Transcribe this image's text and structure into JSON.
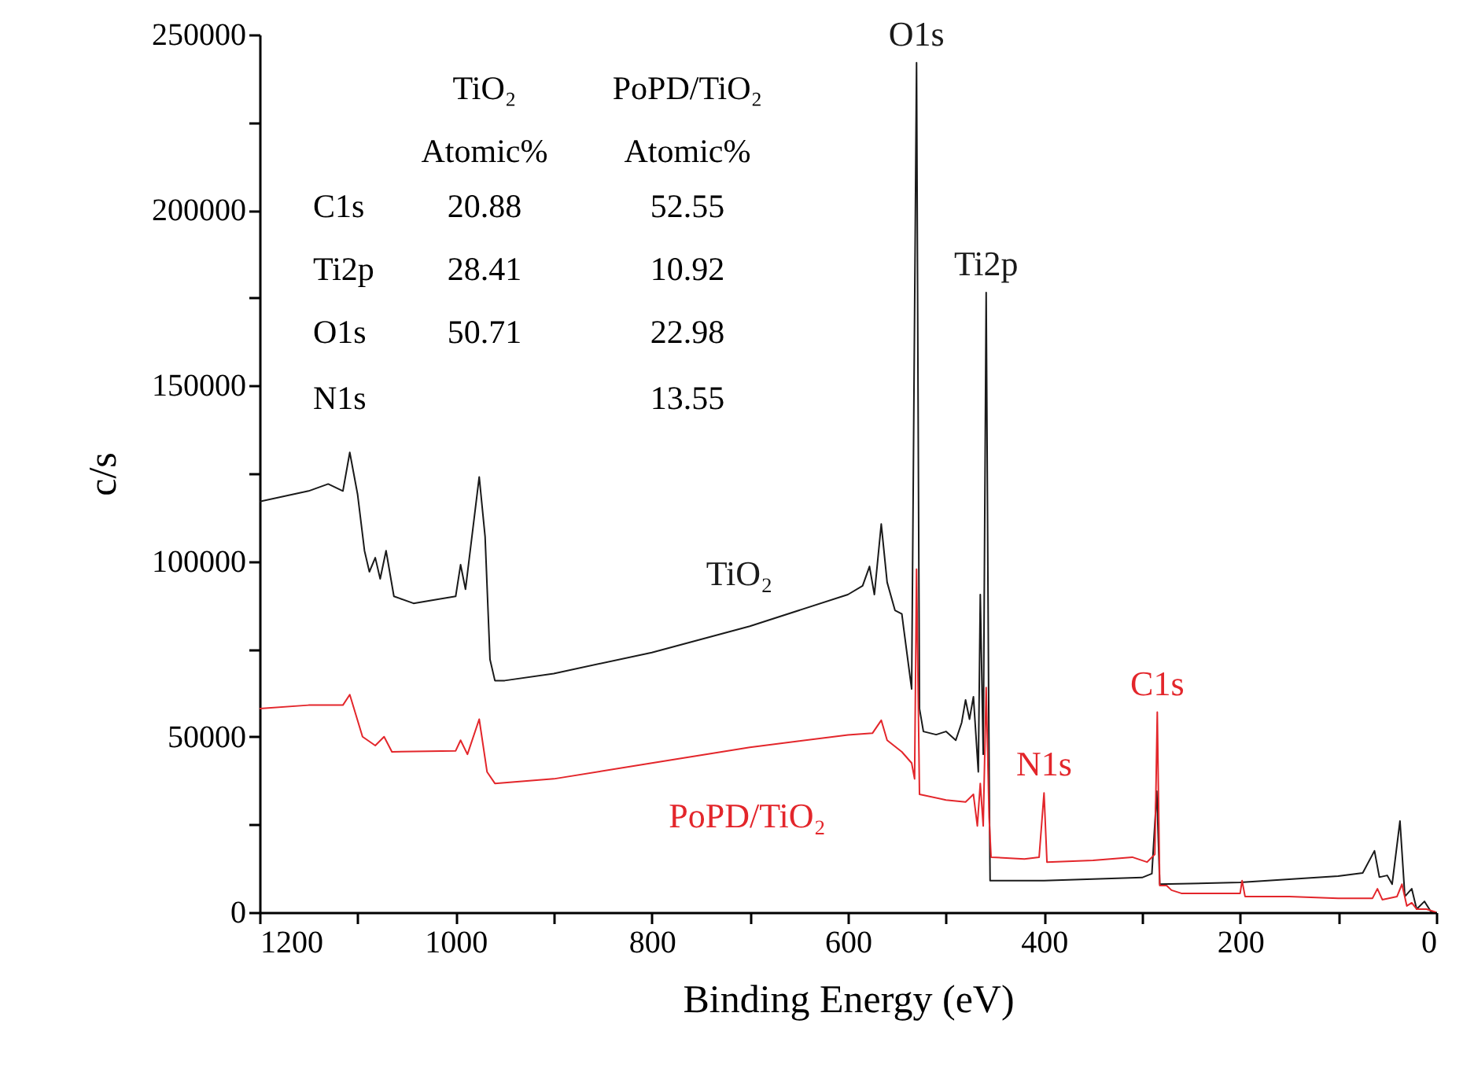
{
  "chart_data": {
    "type": "line",
    "xlabel": "Binding Energy (eV)",
    "ylabel": "c/s",
    "xlim": [
      1200,
      0
    ],
    "xticks": [
      1200,
      {
        "value": 1100,
        "label": null
      },
      1000,
      {
        "value": 900,
        "label": null
      },
      800,
      {
        "value": 700,
        "label": null
      },
      600,
      {
        "value": 500,
        "label": null
      },
      400,
      {
        "value": 300,
        "label": null
      },
      200,
      {
        "value": 100,
        "label": null
      },
      0
    ],
    "ylim": [
      0,
      250000
    ],
    "yticks": [
      0,
      {
        "value": 25000,
        "label": null
      },
      50000,
      {
        "value": 75000,
        "label": null
      },
      100000,
      {
        "value": 125000,
        "label": null
      },
      150000,
      {
        "value": 175000,
        "label": null
      },
      200000,
      {
        "value": 225000,
        "label": null
      },
      250000
    ],
    "grid": false,
    "legend": false,
    "series": [
      {
        "name": "TiO₂",
        "color": "#1a1a1a",
        "x": [
          1200,
          1150,
          1130,
          1115,
          1108,
          1100,
          1093,
          1088,
          1082,
          1077,
          1071,
          1063,
          1043,
          1000,
          995,
          990,
          976,
          970,
          965,
          960,
          950,
          900,
          800,
          700,
          600,
          585,
          578,
          573,
          566,
          560,
          552,
          545,
          543,
          535,
          530,
          527,
          523,
          510,
          500,
          490,
          484,
          480,
          476,
          472,
          467,
          465,
          462,
          459,
          456,
          455,
          400,
          300,
          290,
          285,
          282,
          200,
          100,
          75,
          63,
          58,
          50,
          45,
          37,
          32,
          25,
          20,
          12,
          5,
          0
        ],
        "values": [
          117000,
          120000,
          122000,
          120000,
          131000,
          119000,
          103000,
          97000,
          101000,
          95000,
          103000,
          90000,
          88000,
          90000,
          99000,
          92000,
          124000,
          107000,
          72000,
          66000,
          66000,
          68000,
          74000,
          81500,
          90500,
          93000,
          98500,
          90500,
          110600,
          94000,
          86000,
          85000,
          80600,
          63600,
          242000,
          58000,
          51500,
          50600,
          51500,
          49000,
          54000,
          60500,
          55000,
          61400,
          40000,
          90500,
          45000,
          176500,
          40000,
          9000,
          9000,
          9900,
          11000,
          34500,
          8000,
          8500,
          10300,
          11200,
          17500,
          10000,
          10500,
          8000,
          26000,
          4500,
          6700,
          900,
          3100,
          0,
          0
        ]
      },
      {
        "name": "PoPD/TiO₂",
        "color": "#e3262b",
        "x": [
          1200,
          1150,
          1115,
          1108,
          1095,
          1082,
          1073,
          1065,
          1000,
          995,
          988,
          976,
          968,
          960,
          900,
          800,
          700,
          600,
          575,
          566,
          560,
          545,
          535,
          532,
          530,
          527,
          500,
          480,
          472,
          468,
          465,
          462,
          459,
          456,
          454,
          420,
          405,
          400,
          397,
          350,
          310,
          295,
          287,
          284.5,
          282,
          275,
          270,
          260,
          200,
          198,
          195,
          150,
          100,
          65,
          60,
          55,
          40,
          35,
          30,
          25,
          20,
          10,
          0
        ],
        "values": [
          58000,
          59000,
          59000,
          62000,
          50000,
          47500,
          50000,
          45700,
          46000,
          49000,
          45000,
          55000,
          40000,
          36700,
          38000,
          42500,
          47000,
          50500,
          51000,
          54700,
          49000,
          45700,
          42500,
          38000,
          97700,
          33600,
          32000,
          31400,
          33600,
          24600,
          36700,
          24600,
          64000,
          27000,
          15700,
          15200,
          15700,
          34000,
          14300,
          14800,
          15700,
          14300,
          16500,
          57000,
          7600,
          7600,
          6300,
          5400,
          5400,
          9000,
          4500,
          4500,
          4000,
          4000,
          6700,
          3600,
          4500,
          8000,
          1800,
          2700,
          900,
          900,
          0
        ]
      }
    ],
    "annotations": [
      {
        "text": "O1s",
        "x": 530,
        "y": 242000
      },
      {
        "text": "Ti2p",
        "x": 459,
        "y": 176500
      },
      {
        "text": "N1s",
        "x": 400,
        "y": 34000
      },
      {
        "text": "C1s",
        "x": 284.5,
        "y": 57000
      },
      "TiO₂",
      "PoPD/TiO₂",
      "Atomic%",
      "Atomic%",
      "C1s",
      "20.88",
      "52.55",
      "Ti2p",
      "28.41",
      "10.92",
      "O1s",
      "50.71",
      "22.98",
      "N1s",
      "13.55"
    ]
  }
}
